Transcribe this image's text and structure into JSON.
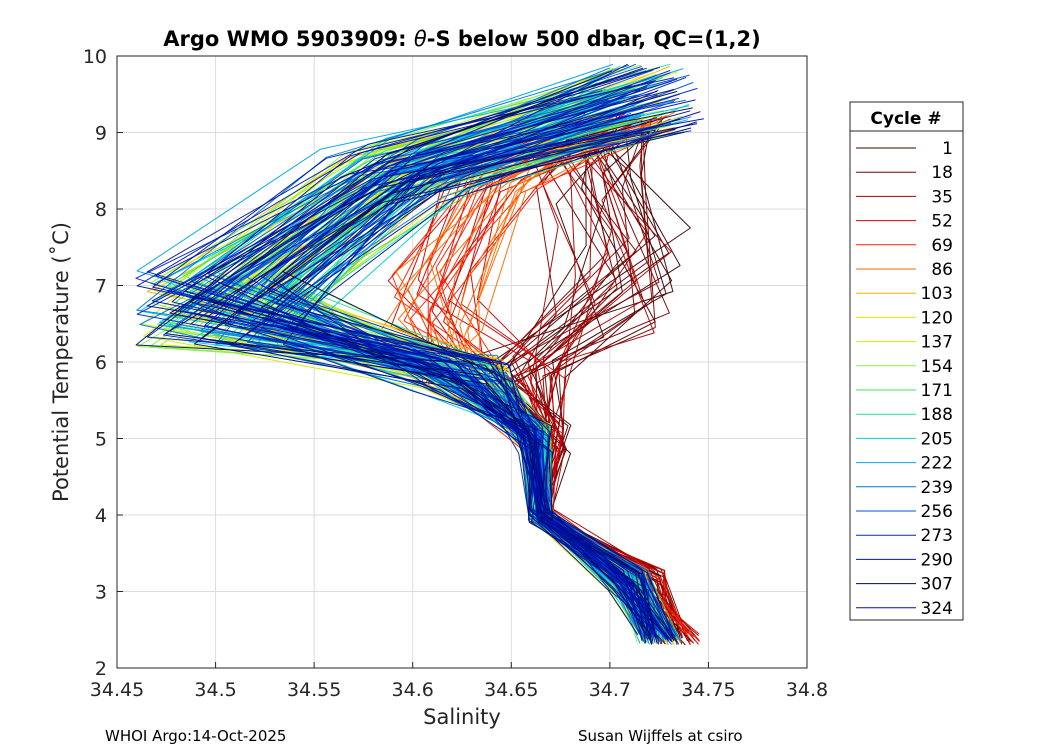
{
  "chart_data": {
    "type": "line",
    "title_main": "Argo WMO 5903909: ",
    "title_theta": "θ",
    "title_rest": "-S below 500 dbar,  QC=(1,2)",
    "xlabel": "Salinity",
    "ylabel": "Potential Temperature (˚C)",
    "xlim": [
      34.45,
      34.8
    ],
    "ylim": [
      2,
      10
    ],
    "x_ticks": [
      "34.45",
      "34.5",
      "34.55",
      "34.6",
      "34.65",
      "34.7",
      "34.75",
      "34.8"
    ],
    "y_ticks": [
      "2",
      "3",
      "4",
      "5",
      "6",
      "7",
      "8",
      "9",
      "10"
    ],
    "grid": true,
    "legend_title": "Cycle #",
    "legend_position": "right",
    "series": [
      {
        "name": "1",
        "color": "#400000",
        "anchor": [
          34.73,
          7.9
        ]
      },
      {
        "name": "18",
        "color": "#7a0000",
        "anchor": [
          34.71,
          7.6
        ]
      },
      {
        "name": "35",
        "color": "#a80000",
        "anchor": [
          34.68,
          7.4
        ]
      },
      {
        "name": "52",
        "color": "#d40000",
        "anchor": [
          34.665,
          7.0
        ]
      },
      {
        "name": "69",
        "color": "#ff2000",
        "anchor": [
          34.64,
          6.6
        ]
      },
      {
        "name": "86",
        "color": "#ff6a00",
        "anchor": [
          34.61,
          6.6
        ]
      },
      {
        "name": "103",
        "color": "#ffae00",
        "anchor": [
          34.59,
          6.3
        ]
      },
      {
        "name": "120",
        "color": "#f0e000",
        "anchor": [
          34.57,
          6.0
        ]
      },
      {
        "name": "137",
        "color": "#c8f000",
        "anchor": [
          34.56,
          6.1
        ]
      },
      {
        "name": "154",
        "color": "#86f040",
        "anchor": [
          34.55,
          6.3
        ]
      },
      {
        "name": "171",
        "color": "#40e060",
        "anchor": [
          34.54,
          6.4
        ]
      },
      {
        "name": "188",
        "color": "#20e0a0",
        "anchor": [
          34.53,
          6.5
        ]
      },
      {
        "name": "205",
        "color": "#00d0d0",
        "anchor": [
          34.53,
          6.6
        ]
      },
      {
        "name": "222",
        "color": "#00a8e8",
        "anchor": [
          34.52,
          6.6
        ]
      },
      {
        "name": "239",
        "color": "#0078e0",
        "anchor": [
          34.52,
          6.7
        ]
      },
      {
        "name": "256",
        "color": "#0050e0",
        "anchor": [
          34.52,
          6.8
        ]
      },
      {
        "name": "273",
        "color": "#0028c8",
        "anchor": [
          34.51,
          6.8
        ]
      },
      {
        "name": "290",
        "color": "#001aa0",
        "anchor": [
          34.51,
          6.9
        ]
      },
      {
        "name": "307",
        "color": "#000a60",
        "anchor": [
          34.52,
          6.9
        ]
      },
      {
        "name": "324",
        "color": "#0010a8",
        "anchor": [
          34.52,
          7.0
        ]
      }
    ]
  },
  "footer_left": "WHOI Argo:14-Oct-2025",
  "footer_right": "Susan Wijffels at csiro"
}
